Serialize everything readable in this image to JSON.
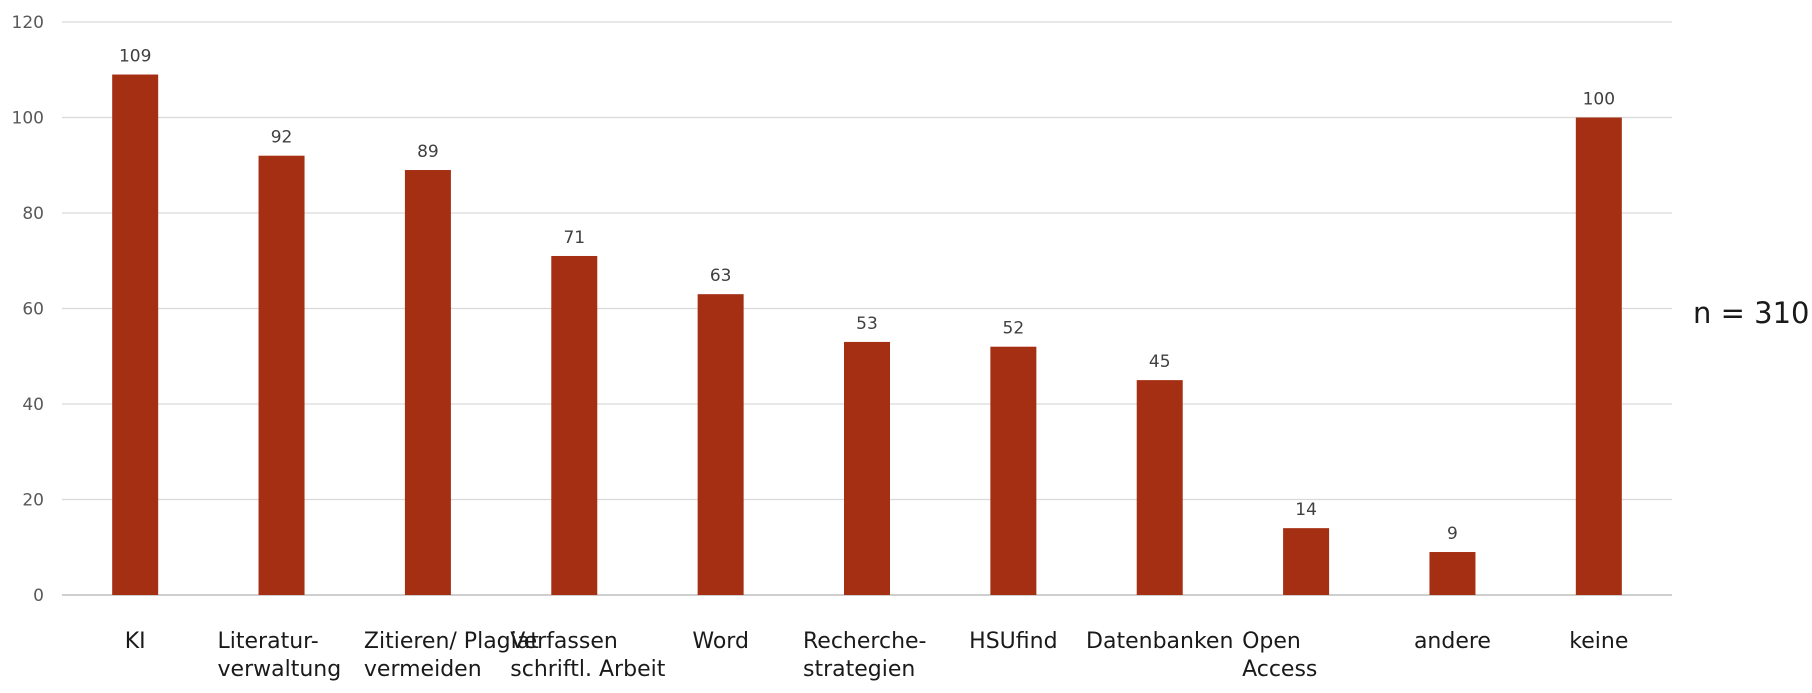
{
  "chart_data": {
    "type": "bar",
    "categories": [
      "KI",
      "Literatur-\nverwaltung",
      "Zitieren/ Plagiat\nvermeiden",
      "Verfassen\nschriftl. Arbeit",
      "Word",
      "Recherche-\nstrategien",
      "HSUfind",
      "Datenbanken",
      "Open\nAccess",
      "andere",
      "keine"
    ],
    "values": [
      109,
      92,
      89,
      71,
      63,
      53,
      52,
      45,
      14,
      9,
      100
    ],
    "ylim": [
      0,
      120
    ],
    "yticks": [
      0,
      20,
      40,
      60,
      80,
      100,
      120
    ],
    "grid": true,
    "bar_color": "#A52F12",
    "grid_color": "#D9D9D9",
    "axis_color": "#BFBFBF",
    "data_labels": true
  },
  "annotation": {
    "n_label": "n = 310"
  }
}
